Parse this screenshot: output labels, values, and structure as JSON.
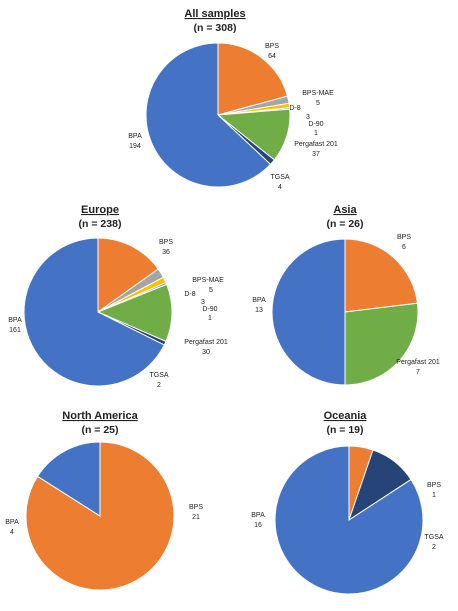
{
  "colors": {
    "BPA": "#4472C4",
    "BPS": "#ED7D31",
    "BPS-MAE": "#A5A5A5",
    "D-8": "#FFC000",
    "D-90": "#5B9BD5",
    "Pergafast 201": "#70AD47",
    "TGSA": "#264478"
  },
  "chart_data": [
    {
      "type": "pie",
      "title": "All samples",
      "subtitle": "(n = 308)",
      "slices": [
        {
          "label": "BPS",
          "value": 64
        },
        {
          "label": "BPS-MAE",
          "value": 5
        },
        {
          "label": "D-8",
          "value": 3
        },
        {
          "label": "D-90",
          "value": 1
        },
        {
          "label": "Pergafast 201",
          "value": 37
        },
        {
          "label": "TGSA",
          "value": 4
        },
        {
          "label": "BPA",
          "value": 194
        }
      ]
    },
    {
      "type": "pie",
      "title": "Europe",
      "subtitle": "(n = 238)",
      "slices": [
        {
          "label": "BPS",
          "value": 36
        },
        {
          "label": "BPS-MAE",
          "value": 5
        },
        {
          "label": "D-8",
          "value": 3
        },
        {
          "label": "D-90",
          "value": 1
        },
        {
          "label": "Pergafast 201",
          "value": 30
        },
        {
          "label": "TGSA",
          "value": 2
        },
        {
          "label": "BPA",
          "value": 161
        }
      ]
    },
    {
      "type": "pie",
      "title": "Asia",
      "subtitle": "(n = 26)",
      "slices": [
        {
          "label": "BPS",
          "value": 6
        },
        {
          "label": "Pergafast 201",
          "value": 7
        },
        {
          "label": "BPA",
          "value": 13
        }
      ]
    },
    {
      "type": "pie",
      "title": "North America",
      "subtitle": "(n = 25)",
      "slices": [
        {
          "label": "BPS",
          "value": 21
        },
        {
          "label": "BPA",
          "value": 4
        }
      ]
    },
    {
      "type": "pie",
      "title": "Oceania",
      "subtitle": "(n = 19)",
      "slices": [
        {
          "label": "BPS",
          "value": 1
        },
        {
          "label": "TGSA",
          "value": 2
        },
        {
          "label": "BPA",
          "value": 16
        }
      ]
    }
  ]
}
